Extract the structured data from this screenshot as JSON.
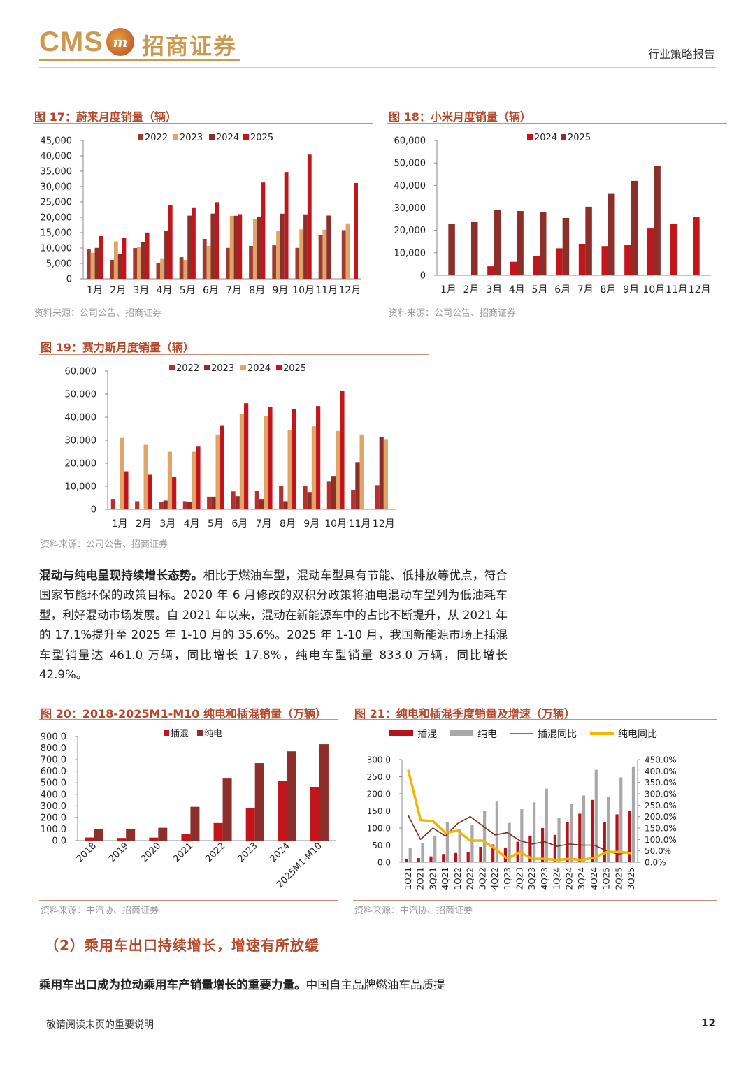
{
  "header": {
    "logo_text": "CMS",
    "logo_mark": "m",
    "logo_cn": "招商证券",
    "report_type": "行业策略报告"
  },
  "figures": [
    {
      "id": "fig17",
      "title": "图 17：蔚来月度销量（辆）",
      "source": "资料来源：公司公告、招商证券",
      "chart_data": {
        "type": "bar",
        "categories": [
          "1月",
          "2月",
          "3月",
          "4月",
          "5月",
          "6月",
          "7月",
          "8月",
          "9月",
          "10月",
          "11月",
          "12月"
        ],
        "ylim": [
          0,
          45000
        ],
        "yticks": [
          0,
          5000,
          10000,
          15000,
          20000,
          25000,
          30000,
          35000,
          40000,
          45000
        ],
        "tick_labels": [
          "0",
          "5,000",
          "10,000",
          "15,000",
          "20,000",
          "25,000",
          "30,000",
          "35,000",
          "40,000",
          "45,000"
        ],
        "legend_position": "top",
        "series": [
          {
            "name": "2022",
            "color": "#9e3a2e",
            "values": [
              9652,
              6131,
              9985,
              5074,
              7024,
              12961,
              10052,
              10677,
              10878,
              10059,
              14178,
              15815
            ]
          },
          {
            "name": "2023",
            "color": "#e2a466",
            "values": [
              8506,
              12157,
              10378,
              6658,
              6155,
              10707,
              20462,
              19329,
              15641,
              16074,
              15959,
              18012
            ]
          },
          {
            "name": "2024",
            "color": "#8c2f2a",
            "values": [
              10055,
              8132,
              11866,
              15620,
              20544,
              21209,
              20498,
              20176,
              21181,
              20976,
              20575,
              null
            ]
          },
          {
            "name": "2025",
            "color": "#c0161c",
            "values": [
              13863,
              13192,
              15039,
              23900,
              23231,
              24925,
              21017,
              31305,
              34749,
              40397,
              null,
              31138
            ]
          }
        ]
      }
    },
    {
      "id": "fig18",
      "title": "图 18：小米月度销量（辆）",
      "source": "资料来源：公司公告、招商证券",
      "chart_data": {
        "type": "bar",
        "categories": [
          "1月",
          "2月",
          "3月",
          "4月",
          "5月",
          "6月",
          "7月",
          "8月",
          "9月",
          "10月",
          "11月",
          "12月"
        ],
        "ylim": [
          0,
          60000
        ],
        "yticks": [
          0,
          10000,
          20000,
          30000,
          40000,
          50000,
          60000
        ],
        "tick_labels": [
          "0",
          "10,000",
          "20,000",
          "30,000",
          "40,000",
          "50,000",
          "60,000"
        ],
        "legend_position": "top",
        "series": [
          {
            "name": "2024",
            "color": "#c0161c",
            "values": [
              null,
              null,
              4000,
              6000,
              8600,
              12000,
              14000,
              13000,
              13600,
              20800,
              23000,
              25800
            ]
          },
          {
            "name": "2025",
            "color": "#8c2f2a",
            "values": [
              23000,
              23800,
              29000,
              28600,
              28000,
              25500,
              30500,
              36500,
              42000,
              48700,
              null,
              null
            ]
          }
        ]
      }
    },
    {
      "id": "fig19",
      "title": "图 19：赛力斯月度销量（辆）",
      "source": "资料来源：公司公告、招商证券",
      "chart_data": {
        "type": "bar",
        "categories": [
          "1月",
          "2月",
          "3月",
          "4月",
          "5月",
          "6月",
          "7月",
          "8月",
          "9月",
          "10月",
          "11月",
          "12月"
        ],
        "ylim": [
          0,
          60000
        ],
        "yticks": [
          0,
          10000,
          20000,
          30000,
          40000,
          50000,
          60000
        ],
        "tick_labels": [
          "0",
          "10,000",
          "20,000",
          "30,000",
          "40,000",
          "50,000",
          "60,000"
        ],
        "legend_position": "top",
        "series": [
          {
            "name": "2022",
            "color": "#b5312d",
            "values": [
              4500,
              3500,
              3200,
              3500,
              5500,
              7800,
              8000,
              10000,
              10200,
              12000,
              8500,
              10500
            ]
          },
          {
            "name": "2023",
            "color": "#8c2f2a",
            "values": [
              null,
              null,
              3800,
              3200,
              5500,
              5700,
              4500,
              3500,
              7500,
              14500,
              20500,
              31500
            ]
          },
          {
            "name": "2024",
            "color": "#e2a466",
            "values": [
              31000,
              28000,
              25000,
              25000,
              32500,
              41500,
              40500,
              34500,
              36000,
              34000,
              32500,
              30500
            ]
          },
          {
            "name": "2025",
            "color": "#c0161c",
            "values": [
              16500,
              15000,
              14000,
              27500,
              36500,
              46000,
              44500,
              43500,
              44800,
              51500,
              null,
              null
            ]
          }
        ]
      }
    },
    {
      "id": "fig20",
      "title": "图 20：2018-2025M1-M10 纯电和插混销量（万辆）",
      "source": "资料来源：中汽协、招商证券",
      "chart_data": {
        "type": "bar",
        "categories": [
          "2018",
          "2019",
          "2020",
          "2021",
          "2022",
          "2023",
          "2024",
          "2025M1-M10"
        ],
        "ylim": [
          0,
          900
        ],
        "yticks": [
          0,
          100,
          200,
          300,
          400,
          500,
          600,
          700,
          800,
          900
        ],
        "tick_labels": [
          "0.0",
          "100.0",
          "200.0",
          "300.0",
          "400.0",
          "500.0",
          "600.0",
          "700.0",
          "800.0",
          "900.0"
        ],
        "legend_position": "top",
        "series": [
          {
            "name": "插混",
            "color": "#c0161c",
            "values": [
              27,
              23,
              26,
              60,
              152,
              280,
              514,
              461
            ]
          },
          {
            "name": "纯电",
            "color": "#8c2f2a",
            "values": [
              98,
              97,
              111,
              292,
              537,
              670,
              772,
              833
            ]
          }
        ]
      }
    },
    {
      "id": "fig21",
      "title": "图 21：纯电和插混季度销量及增速（万辆）",
      "source": "资料来源：中汽协、招商证券",
      "chart_data": {
        "type": "bar+line",
        "categories": [
          "1Q21",
          "2Q21",
          "3Q21",
          "4Q21",
          "1Q22",
          "2Q22",
          "3Q22",
          "4Q22",
          "1Q23",
          "2Q23",
          "3Q23",
          "4Q23",
          "1Q24",
          "2Q24",
          "3Q24",
          "4Q24",
          "1Q25",
          "2Q25",
          "3Q25"
        ],
        "ylim": [
          0,
          300
        ],
        "yticks": [
          0,
          50,
          100,
          150,
          200,
          250,
          300
        ],
        "tick_labels": [
          "0.0",
          "50.0",
          "100.0",
          "150.0",
          "200.0",
          "250.0",
          "300.0"
        ],
        "y2lim": [
          0,
          450
        ],
        "y2ticks": [
          0,
          50,
          100,
          150,
          200,
          250,
          300,
          350,
          400,
          450
        ],
        "tick_labels_right": [
          "0.0%",
          "50.0%",
          "100.0%",
          "150.0%",
          "200.0%",
          "250.0%",
          "300.0%",
          "350.0%",
          "400.0%",
          "450.0%"
        ],
        "legend_position": "top",
        "series": [
          {
            "name": "插混",
            "kind": "bar",
            "color": "#b5121b",
            "values": [
              10,
              12,
              17,
              24,
              27,
              30,
              45,
              52,
              43,
              60,
              78,
              100,
              80,
              117,
              142,
              182,
              118,
              140,
              150
            ]
          },
          {
            "name": "纯电",
            "kind": "bar",
            "color": "#a8a8a8",
            "values": [
              41,
              56,
              77,
              118,
              98,
              110,
              150,
              177,
              115,
              155,
              175,
              215,
              130,
              170,
              195,
              270,
              190,
              248,
              280
            ]
          },
          {
            "name": "插混同比",
            "kind": "line",
            "axis": "right",
            "color": "#7a2a22",
            "values": [
              205,
              100,
              150,
              115,
              170,
              200,
              160,
              120,
              130,
              95,
              80,
              90,
              70,
              80,
              75,
              75,
              50,
              35,
              50
            ]
          },
          {
            "name": "纯电同比",
            "kind": "line",
            "axis": "right",
            "color": "#f2b600",
            "values": [
              405,
              185,
              180,
              130,
              138,
              95,
              95,
              60,
              15,
              45,
              15,
              15,
              10,
              15,
              10,
              20,
              45,
              45,
              40
            ]
          }
        ]
      }
    }
  ],
  "body": {
    "para1_lead": "混动与纯电呈现持续增长态势。",
    "para1_text": "相比于燃油车型，混动车型具有节能、低排放等优点，符合国家节能环保的政策目标。2020 年 6 月修改的双积分政策将油电混动车型列为低油耗车型，利好混动市场发展。自 2021 年以来，混动在新能源车中的占比不断提升，从 2021 年的 17.1%提升至 2025 年 1-10 月的 35.6%。2025 年 1-10 月，我国新能源市场上插混车型销量达 461.0 万辆，同比增长 17.8%，纯电车型销量 833.0 万辆，同比增长 42.9%。",
    "section_heading": "（2）乘用车出口持续增长，增速有所放缓",
    "para2_lead": "乘用车出口成为拉动乘用车产销量增长的重要力量。",
    "para2_text": "中国自主品牌燃油车品质提"
  },
  "footer": {
    "note": "敬请阅读末页的重要说明",
    "page": "12"
  }
}
